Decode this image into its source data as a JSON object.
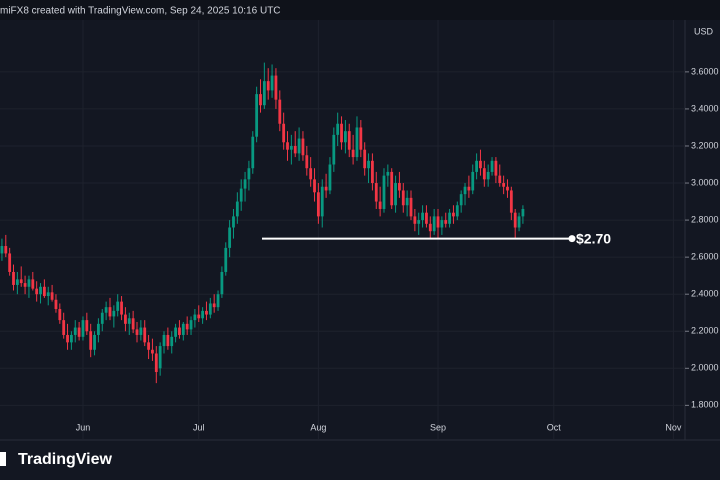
{
  "chart_data": {
    "type": "candlestick",
    "title": "miFX8 created with TradingView.com, Sep 24, 2025 10:16 UTC",
    "currency": "USD",
    "source": "TradingView",
    "up_color": "#089981",
    "down_color": "#f23645",
    "grid": true,
    "xlim": [
      -0.5,
      177
    ],
    "xticks": [
      {
        "value": 21,
        "label": "Jun"
      },
      {
        "value": 51,
        "label": "Jul"
      },
      {
        "value": 82,
        "label": "Aug"
      },
      {
        "value": 113,
        "label": "Sep"
      },
      {
        "value": 143,
        "label": "Oct"
      },
      {
        "value": 174,
        "label": "Nov"
      }
    ],
    "ylim": [
      1.64,
      3.88
    ],
    "yticks": [
      {
        "value": 1.8,
        "label": "1.8000"
      },
      {
        "value": 2,
        "label": "2.0000"
      },
      {
        "value": 2.2,
        "label": "2.2000"
      },
      {
        "value": 2.4,
        "label": "2.4000"
      },
      {
        "value": 2.6,
        "label": "2.6000"
      },
      {
        "value": 2.8,
        "label": "2.8000"
      },
      {
        "value": 3,
        "label": "3.0000"
      },
      {
        "value": 3.2,
        "label": "3.2000"
      },
      {
        "value": 3.4,
        "label": "3.4000"
      },
      {
        "value": 3.6,
        "label": "3.6000"
      }
    ],
    "level": {
      "value": 2.7,
      "label": "$2.70"
    },
    "ohlc": [
      [
        2.62,
        2.7,
        2.58,
        2.66
      ],
      [
        2.66,
        2.72,
        2.6,
        2.62
      ],
      [
        2.62,
        2.65,
        2.5,
        2.52
      ],
      [
        2.52,
        2.56,
        2.42,
        2.45
      ],
      [
        2.45,
        2.52,
        2.4,
        2.48
      ],
      [
        2.48,
        2.55,
        2.44,
        2.46
      ],
      [
        2.46,
        2.5,
        2.4,
        2.44
      ],
      [
        2.44,
        2.5,
        2.38,
        2.48
      ],
      [
        2.48,
        2.52,
        2.42,
        2.43
      ],
      [
        2.43,
        2.47,
        2.36,
        2.4
      ],
      [
        2.4,
        2.46,
        2.35,
        2.44
      ],
      [
        2.44,
        2.48,
        2.38,
        2.39
      ],
      [
        2.39,
        2.44,
        2.34,
        2.41
      ],
      [
        2.41,
        2.45,
        2.36,
        2.37
      ],
      [
        2.37,
        2.4,
        2.3,
        2.32
      ],
      [
        2.32,
        2.35,
        2.24,
        2.26
      ],
      [
        2.26,
        2.3,
        2.16,
        2.18
      ],
      [
        2.18,
        2.24,
        2.1,
        2.14
      ],
      [
        2.14,
        2.2,
        2.1,
        2.18
      ],
      [
        2.18,
        2.26,
        2.14,
        2.22
      ],
      [
        2.22,
        2.25,
        2.15,
        2.17
      ],
      [
        2.17,
        2.28,
        2.15,
        2.26
      ],
      [
        2.26,
        2.3,
        2.18,
        2.2
      ],
      [
        2.2,
        2.24,
        2.06,
        2.1
      ],
      [
        2.1,
        2.2,
        2.07,
        2.18
      ],
      [
        2.18,
        2.27,
        2.14,
        2.24
      ],
      [
        2.24,
        2.32,
        2.2,
        2.3
      ],
      [
        2.3,
        2.36,
        2.26,
        2.33
      ],
      [
        2.33,
        2.38,
        2.26,
        2.28
      ],
      [
        2.28,
        2.34,
        2.22,
        2.31
      ],
      [
        2.31,
        2.4,
        2.28,
        2.36
      ],
      [
        2.36,
        2.39,
        2.26,
        2.29
      ],
      [
        2.29,
        2.33,
        2.2,
        2.24
      ],
      [
        2.24,
        2.3,
        2.18,
        2.27
      ],
      [
        2.27,
        2.31,
        2.19,
        2.21
      ],
      [
        2.21,
        2.25,
        2.14,
        2.18
      ],
      [
        2.18,
        2.26,
        2.15,
        2.22
      ],
      [
        2.22,
        2.26,
        2.12,
        2.14
      ],
      [
        2.14,
        2.18,
        2.05,
        2.1
      ],
      [
        2.1,
        2.16,
        2.04,
        2.08
      ],
      [
        2.08,
        2.12,
        1.92,
        1.98
      ],
      [
        2.0,
        2.14,
        1.96,
        2.12
      ],
      [
        2.12,
        2.2,
        2.08,
        2.18
      ],
      [
        2.18,
        2.22,
        2.1,
        2.12
      ],
      [
        2.12,
        2.2,
        2.08,
        2.17
      ],
      [
        2.17,
        2.24,
        2.14,
        2.22
      ],
      [
        2.22,
        2.26,
        2.16,
        2.18
      ],
      [
        2.18,
        2.25,
        2.15,
        2.24
      ],
      [
        2.24,
        2.28,
        2.18,
        2.21
      ],
      [
        2.21,
        2.28,
        2.18,
        2.26
      ],
      [
        2.26,
        2.32,
        2.22,
        2.29
      ],
      [
        2.29,
        2.34,
        2.25,
        2.27
      ],
      [
        2.27,
        2.33,
        2.24,
        2.31
      ],
      [
        2.31,
        2.36,
        2.26,
        2.29
      ],
      [
        2.29,
        2.38,
        2.27,
        2.35
      ],
      [
        2.35,
        2.4,
        2.3,
        2.33
      ],
      [
        2.33,
        2.42,
        2.31,
        2.4
      ],
      [
        2.4,
        2.55,
        2.38,
        2.52
      ],
      [
        2.52,
        2.68,
        2.5,
        2.65
      ],
      [
        2.65,
        2.8,
        2.6,
        2.76
      ],
      [
        2.76,
        2.86,
        2.7,
        2.82
      ],
      [
        2.82,
        2.95,
        2.78,
        2.9
      ],
      [
        2.9,
        3.02,
        2.85,
        2.97
      ],
      [
        2.97,
        3.06,
        2.9,
        3.02
      ],
      [
        3.02,
        3.12,
        2.96,
        3.08
      ],
      [
        3.08,
        3.28,
        3.05,
        3.25
      ],
      [
        3.25,
        3.52,
        3.22,
        3.48
      ],
      [
        3.48,
        3.56,
        3.38,
        3.42
      ],
      [
        3.42,
        3.65,
        3.4,
        3.55
      ],
      [
        3.55,
        3.62,
        3.45,
        3.5
      ],
      [
        3.5,
        3.64,
        3.46,
        3.58
      ],
      [
        3.58,
        3.62,
        3.4,
        3.45
      ],
      [
        3.45,
        3.5,
        3.28,
        3.32
      ],
      [
        3.32,
        3.38,
        3.18,
        3.22
      ],
      [
        3.22,
        3.28,
        3.12,
        3.18
      ],
      [
        3.18,
        3.26,
        3.1,
        3.2
      ],
      [
        3.2,
        3.28,
        3.14,
        3.16
      ],
      [
        3.16,
        3.3,
        3.12,
        3.24
      ],
      [
        3.24,
        3.28,
        3.12,
        3.15
      ],
      [
        3.15,
        3.2,
        3.04,
        3.08
      ],
      [
        3.08,
        3.14,
        2.98,
        3.02
      ],
      [
        3.02,
        3.08,
        2.9,
        2.95
      ],
      [
        2.95,
        3.0,
        2.78,
        2.82
      ],
      [
        2.82,
        3.02,
        2.76,
        2.98
      ],
      [
        2.98,
        3.05,
        2.92,
        2.96
      ],
      [
        2.96,
        3.14,
        2.94,
        3.1
      ],
      [
        3.1,
        3.3,
        3.06,
        3.26
      ],
      [
        3.26,
        3.38,
        3.2,
        3.32
      ],
      [
        3.32,
        3.36,
        3.18,
        3.22
      ],
      [
        3.22,
        3.34,
        3.16,
        3.28
      ],
      [
        3.28,
        3.32,
        3.14,
        3.18
      ],
      [
        3.18,
        3.26,
        3.1,
        3.14
      ],
      [
        3.14,
        3.36,
        3.12,
        3.3
      ],
      [
        3.3,
        3.34,
        3.14,
        3.18
      ],
      [
        3.18,
        3.22,
        3.04,
        3.08
      ],
      [
        3.08,
        3.16,
        3.0,
        3.12
      ],
      [
        3.12,
        3.16,
        2.96,
        3.0
      ],
      [
        3.0,
        3.06,
        2.86,
        2.9
      ],
      [
        2.9,
        2.98,
        2.82,
        2.86
      ],
      [
        2.86,
        3.08,
        2.84,
        3.04
      ],
      [
        3.04,
        3.1,
        2.98,
        3.06
      ],
      [
        3.06,
        3.08,
        2.86,
        2.88
      ],
      [
        2.88,
        3.04,
        2.84,
        3.0
      ],
      [
        3.0,
        3.06,
        2.92,
        2.96
      ],
      [
        2.96,
        3.0,
        2.84,
        2.88
      ],
      [
        2.88,
        2.96,
        2.82,
        2.92
      ],
      [
        2.92,
        2.96,
        2.8,
        2.82
      ],
      [
        2.82,
        2.86,
        2.74,
        2.78
      ],
      [
        2.78,
        2.84,
        2.72,
        2.8
      ],
      [
        2.8,
        2.88,
        2.76,
        2.84
      ],
      [
        2.84,
        2.88,
        2.76,
        2.78
      ],
      [
        2.78,
        2.82,
        2.7,
        2.74
      ],
      [
        2.74,
        2.86,
        2.72,
        2.82
      ],
      [
        2.82,
        2.86,
        2.7,
        2.76
      ],
      [
        2.76,
        2.82,
        2.72,
        2.8
      ],
      [
        2.8,
        2.84,
        2.76,
        2.78
      ],
      [
        2.78,
        2.86,
        2.76,
        2.84
      ],
      [
        2.84,
        2.88,
        2.78,
        2.82
      ],
      [
        2.82,
        2.9,
        2.8,
        2.88
      ],
      [
        2.88,
        2.96,
        2.84,
        2.94
      ],
      [
        2.94,
        3.0,
        2.88,
        2.98
      ],
      [
        2.98,
        3.04,
        2.92,
        2.96
      ],
      [
        2.96,
        3.1,
        2.94,
        3.06
      ],
      [
        3.06,
        3.16,
        3.02,
        3.12
      ],
      [
        3.12,
        3.18,
        3.04,
        3.08
      ],
      [
        3.08,
        3.12,
        2.98,
        3.02
      ],
      [
        3.02,
        3.1,
        2.98,
        3.06
      ],
      [
        3.06,
        3.14,
        3.04,
        3.12
      ],
      [
        3.12,
        3.14,
        3.0,
        3.04
      ],
      [
        3.04,
        3.1,
        2.98,
        3.0
      ],
      [
        3.0,
        3.04,
        2.94,
        2.98
      ],
      [
        2.98,
        3.02,
        2.92,
        2.96
      ],
      [
        2.96,
        2.98,
        2.8,
        2.84
      ],
      [
        2.84,
        2.86,
        2.7,
        2.76
      ],
      [
        2.76,
        2.84,
        2.74,
        2.82
      ],
      [
        2.82,
        2.88,
        2.78,
        2.86
      ]
    ]
  }
}
